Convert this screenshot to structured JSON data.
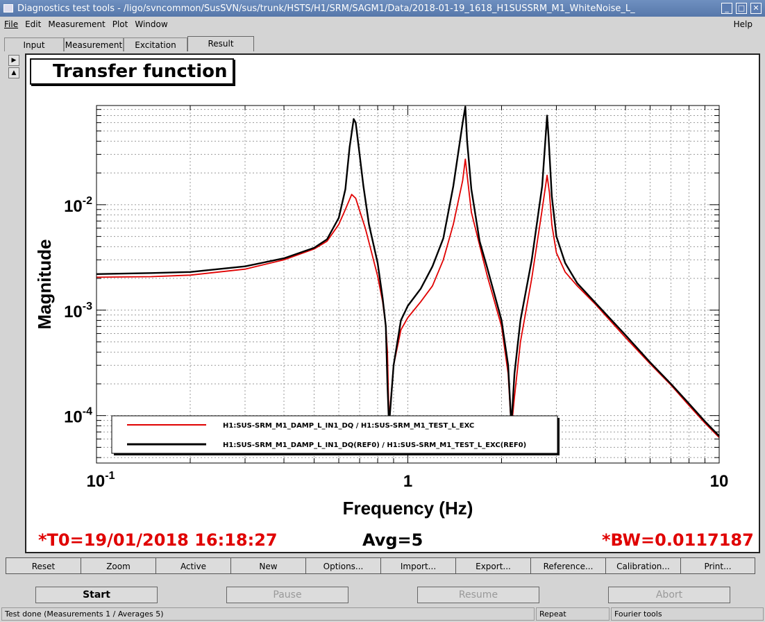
{
  "window": {
    "title": "Diagnostics test tools - /ligo/svncommon/SusSVN/sus/trunk/HSTS/H1/SRM/SAGM1/Data/2018-01-19_1618_H1SUSSRM_M1_WhiteNoise_L_",
    "minimize": "_",
    "maximize": "□",
    "close": "✕"
  },
  "menu": {
    "file": "File",
    "edit": "Edit",
    "measurement": "Measurement",
    "plot": "Plot",
    "window": "Window",
    "help": "Help"
  },
  "tabs": [
    "Input",
    "Measurement",
    "Excitation",
    "Result"
  ],
  "panel": {
    "title": "Transfer function"
  },
  "chart_data": {
    "type": "line",
    "ylabel": "Magnitude",
    "xlabel": "Frequency (Hz)",
    "xscale": "log",
    "yscale": "log",
    "xlim": [
      0.1,
      10
    ],
    "ylim": [
      3.55e-05,
      0.0872
    ],
    "x_ticks": [
      "10^-1",
      "1",
      "10"
    ],
    "y_ticks": [
      "10^-4",
      "10^-3",
      "10^-2"
    ],
    "grid": true,
    "legend_position": "bottom-left",
    "series": [
      {
        "name": "H1:SUS-SRM_M1_DAMP_L_IN1_DQ / H1:SUS-SRM_M1_TEST_L_EXC",
        "color": "#e00000",
        "x": [
          0.1,
          0.15,
          0.2,
          0.3,
          0.4,
          0.5,
          0.55,
          0.6,
          0.63,
          0.66,
          0.68,
          0.7,
          0.73,
          0.76,
          0.8,
          0.83,
          0.85,
          0.86,
          0.87,
          0.9,
          0.95,
          1.0,
          1.1,
          1.2,
          1.3,
          1.4,
          1.5,
          1.53,
          1.6,
          1.8,
          2.0,
          2.1,
          2.15,
          2.2,
          2.3,
          2.5,
          2.7,
          2.8,
          2.85,
          2.9,
          3.0,
          3.2,
          3.5,
          4,
          5,
          6,
          7,
          8,
          9,
          10
        ],
        "y": [
          0.00205,
          0.00208,
          0.00215,
          0.00245,
          0.003,
          0.0038,
          0.0045,
          0.0065,
          0.009,
          0.0125,
          0.0115,
          0.0088,
          0.006,
          0.0038,
          0.0021,
          0.0012,
          0.0007,
          0.0004,
          9e-05,
          0.0003,
          0.00065,
          0.00085,
          0.0012,
          0.0017,
          0.003,
          0.0065,
          0.017,
          0.027,
          0.0085,
          0.0021,
          0.0007,
          0.00025,
          7.5e-05,
          0.00015,
          0.0005,
          0.002,
          0.009,
          0.019,
          0.013,
          0.0065,
          0.0035,
          0.0023,
          0.0017,
          0.00114,
          0.00055,
          0.00031,
          0.000195,
          0.000125,
          8.5e-05,
          6.2e-05
        ]
      },
      {
        "name": "H1:SUS-SRM_M1_DAMP_L_IN1_DQ(REF0) / H1:SUS-SRM_M1_TEST_L_EXC(REF0)",
        "color": "#000000",
        "x": [
          0.1,
          0.15,
          0.2,
          0.3,
          0.4,
          0.5,
          0.55,
          0.6,
          0.63,
          0.65,
          0.67,
          0.68,
          0.7,
          0.72,
          0.75,
          0.8,
          0.83,
          0.85,
          0.86,
          0.87,
          0.9,
          0.95,
          1.0,
          1.1,
          1.2,
          1.3,
          1.4,
          1.5,
          1.53,
          1.55,
          1.6,
          1.7,
          1.8,
          2.0,
          2.1,
          2.15,
          2.2,
          2.3,
          2.5,
          2.7,
          2.8,
          2.83,
          2.9,
          3.0,
          3.2,
          3.5,
          4,
          5,
          6,
          7,
          8,
          9,
          10
        ],
        "y": [
          0.0022,
          0.00225,
          0.0023,
          0.0026,
          0.0031,
          0.0039,
          0.0047,
          0.0075,
          0.014,
          0.035,
          0.065,
          0.06,
          0.03,
          0.015,
          0.0065,
          0.0028,
          0.0013,
          0.0007,
          0.0002,
          8e-05,
          0.0003,
          0.0008,
          0.0011,
          0.0016,
          0.0026,
          0.0048,
          0.015,
          0.06,
          0.085,
          0.04,
          0.014,
          0.0045,
          0.0025,
          0.0008,
          0.0003,
          8e-05,
          0.00025,
          0.0008,
          0.003,
          0.015,
          0.07,
          0.045,
          0.012,
          0.005,
          0.0028,
          0.0018,
          0.00118,
          0.00058,
          0.00032,
          0.0002,
          0.00013,
          8.8e-05,
          6.4e-05
        ]
      }
    ]
  },
  "info": {
    "t0": "*T0=19/01/2018 16:18:27",
    "avg": "Avg=5",
    "bw": "*BW=0.0117187"
  },
  "buttons": [
    "Reset",
    "Zoom",
    "Active",
    "New",
    "Options...",
    "Import...",
    "Export...",
    "Reference...",
    "Calibration...",
    "Print..."
  ],
  "controls": {
    "start": "Start",
    "pause": "Pause",
    "resume": "Resume",
    "abort": "Abort"
  },
  "status": {
    "message": "Test done (Measurements 1 / Averages 5)",
    "mode": "Repeat",
    "tool": "Fourier tools"
  }
}
